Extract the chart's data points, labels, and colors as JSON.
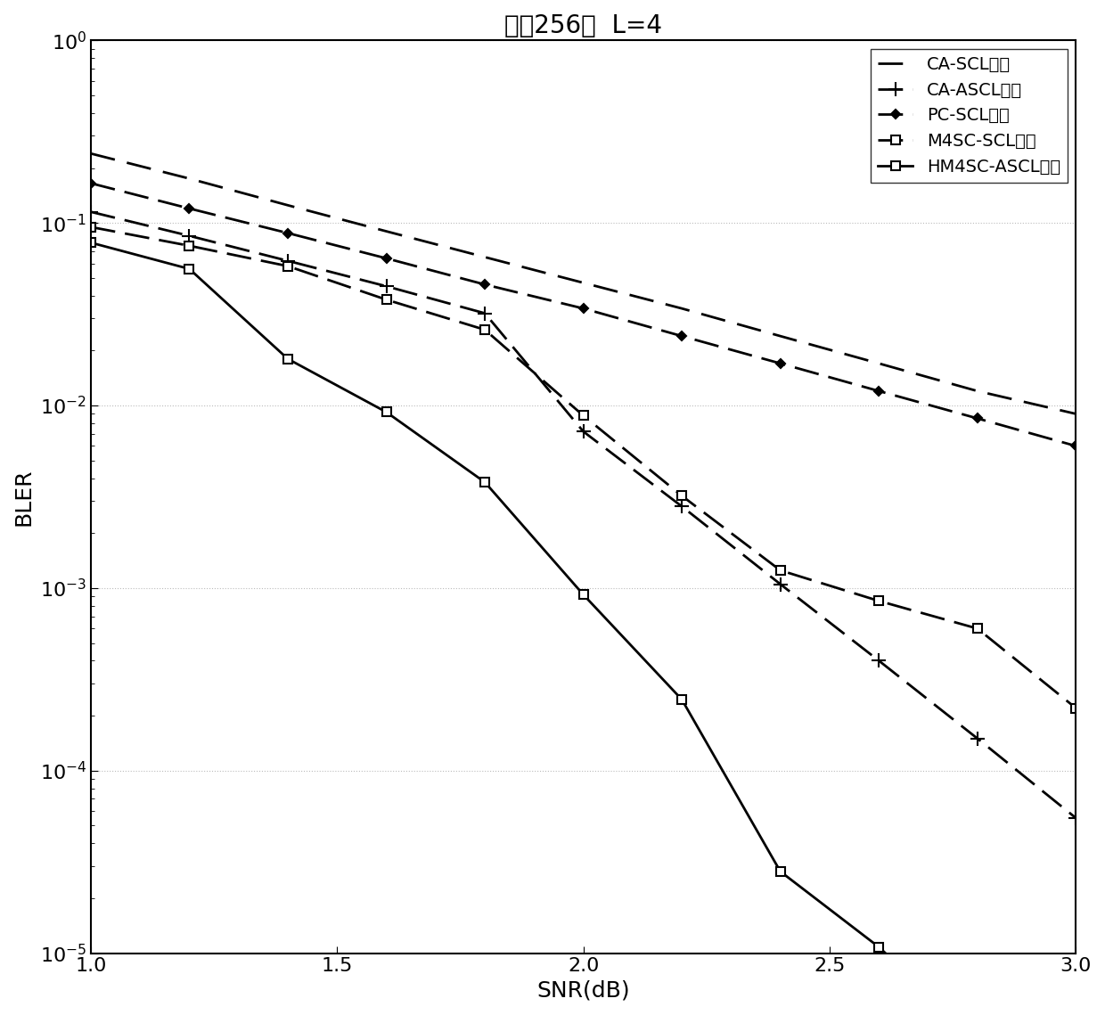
{
  "title": "码长256，  L=4",
  "xlabel": "SNR(dB)",
  "ylabel": "BLER",
  "xlim": [
    1.0,
    3.0
  ],
  "ylim": [
    1e-05,
    1.0
  ],
  "xticks": [
    1.0,
    1.5,
    2.0,
    2.5,
    3.0
  ],
  "series": [
    {
      "label": "CA-SCL算法",
      "color": "#000000",
      "linestyle": "dashed",
      "linewidth": 2.0,
      "dashes": [
        10,
        5
      ],
      "marker": null,
      "markersize": 0,
      "x": [
        1.0,
        1.2,
        1.4,
        1.6,
        1.8,
        2.0,
        2.2,
        2.4,
        2.6,
        2.8,
        3.0
      ],
      "y": [
        0.24,
        0.175,
        0.125,
        0.09,
        0.065,
        0.047,
        0.034,
        0.024,
        0.017,
        0.012,
        0.009
      ]
    },
    {
      "label": "CA-ASCL算法",
      "color": "#000000",
      "linestyle": "dashed",
      "linewidth": 2.0,
      "dashes": [
        10,
        4
      ],
      "marker": "+",
      "markersize": 11,
      "markevery": 1,
      "x": [
        1.0,
        1.2,
        1.4,
        1.6,
        1.8,
        2.0,
        2.2,
        2.4,
        2.6,
        2.8,
        3.0
      ],
      "y": [
        0.115,
        0.085,
        0.062,
        0.045,
        0.032,
        0.0072,
        0.0028,
        0.00105,
        0.0004,
        0.00015,
        5.5e-05
      ]
    },
    {
      "label": "PC-SCL算法",
      "color": "#000000",
      "linestyle": "dashed",
      "linewidth": 2.0,
      "dashes": [
        10,
        4
      ],
      "marker": "D",
      "markersize": 5,
      "markevery": 1,
      "x": [
        1.0,
        1.2,
        1.4,
        1.6,
        1.8,
        2.0,
        2.2,
        2.4,
        2.6,
        2.8,
        3.0
      ],
      "y": [
        0.165,
        0.12,
        0.088,
        0.064,
        0.046,
        0.034,
        0.024,
        0.017,
        0.012,
        0.0085,
        0.006
      ]
    },
    {
      "label": "M4SC-SCL算法",
      "color": "#000000",
      "linestyle": "dashed",
      "linewidth": 2.0,
      "dashes": [
        10,
        4
      ],
      "marker": "s",
      "markersize": 7,
      "markevery": 1,
      "x": [
        1.0,
        1.2,
        1.4,
        1.6,
        1.8,
        2.0,
        2.2,
        2.4,
        2.6,
        2.8,
        3.0
      ],
      "y": [
        0.095,
        0.075,
        0.058,
        0.038,
        0.026,
        0.0088,
        0.0032,
        0.00125,
        0.00085,
        0.0006,
        0.00022
      ]
    },
    {
      "label": "HM4SC-ASCL算法",
      "color": "#000000",
      "linestyle": "solid",
      "linewidth": 2.0,
      "dashes": null,
      "marker": "s",
      "markersize": 7,
      "markevery": 1,
      "x": [
        1.0,
        1.2,
        1.4,
        1.6,
        1.8,
        2.0,
        2.2,
        2.4,
        2.6,
        2.8,
        3.0
      ],
      "y": [
        0.078,
        0.056,
        0.018,
        0.0092,
        0.0038,
        0.00092,
        0.000245,
        2.8e-05,
        1.08e-05,
        3.4e-06,
        1e-06
      ]
    }
  ],
  "grid_color": "#bbbbbb",
  "legend_loc": "upper right",
  "background_color": "#ffffff",
  "title_fontsize": 20,
  "label_fontsize": 18,
  "tick_fontsize": 16,
  "legend_fontsize": 14
}
